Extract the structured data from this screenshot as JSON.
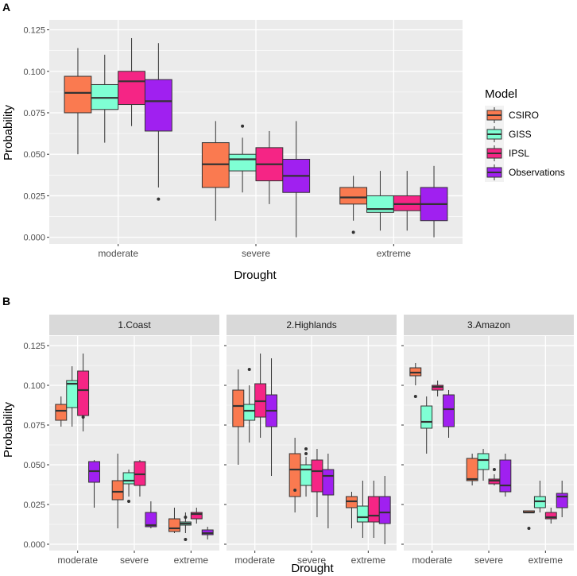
{
  "chart_data": [
    {
      "type": "boxplot",
      "panel_label": "A",
      "xlabel": "Drought",
      "ylabel": "Probability",
      "ylim": [
        -0.004,
        0.131
      ],
      "yticks": [
        "0.000",
        "0.025",
        "0.050",
        "0.075",
        "0.100",
        "0.125"
      ],
      "ytick_values": [
        0,
        0.025,
        0.05,
        0.075,
        0.1,
        0.125
      ],
      "categories": [
        "moderate",
        "severe",
        "extreme"
      ],
      "legend": {
        "title": "Model",
        "position": "right",
        "entries": [
          "CSIRO",
          "GISS",
          "IPSL",
          "Observations"
        ]
      },
      "series": [
        {
          "name": "CSIRO",
          "color": "#FA7A50",
          "boxes": [
            {
              "min": 0.05,
              "q1": 0.075,
              "median": 0.087,
              "q3": 0.097,
              "max": 0.114,
              "outliers": []
            },
            {
              "min": 0.01,
              "q1": 0.03,
              "median": 0.044,
              "q3": 0.057,
              "max": 0.07,
              "outliers": []
            },
            {
              "min": 0.01,
              "q1": 0.02,
              "median": 0.024,
              "q3": 0.03,
              "max": 0.037,
              "outliers": [
                0.003
              ]
            }
          ]
        },
        {
          "name": "GISS",
          "color": "#7FFFD4",
          "boxes": [
            {
              "min": 0.057,
              "q1": 0.077,
              "median": 0.084,
              "q3": 0.092,
              "max": 0.11,
              "outliers": []
            },
            {
              "min": 0.027,
              "q1": 0.04,
              "median": 0.047,
              "q3": 0.05,
              "max": 0.06,
              "outliers": [
                0.067
              ]
            },
            {
              "min": 0.004,
              "q1": 0.015,
              "median": 0.017,
              "q3": 0.025,
              "max": 0.04,
              "outliers": []
            }
          ]
        },
        {
          "name": "IPSL",
          "color": "#F52585",
          "boxes": [
            {
              "min": 0.067,
              "q1": 0.08,
              "median": 0.094,
              "q3": 0.1,
              "max": 0.12,
              "outliers": []
            },
            {
              "min": 0.02,
              "q1": 0.034,
              "median": 0.044,
              "q3": 0.054,
              "max": 0.064,
              "outliers": []
            },
            {
              "min": 0.004,
              "q1": 0.016,
              "median": 0.02,
              "q3": 0.025,
              "max": 0.04,
              "outliers": []
            }
          ]
        },
        {
          "name": "Observations",
          "color": "#A020F0",
          "boxes": [
            {
              "min": 0.03,
              "q1": 0.064,
              "median": 0.082,
              "q3": 0.095,
              "max": 0.117,
              "outliers": [
                0.023
              ]
            },
            {
              "min": 0.0,
              "q1": 0.027,
              "median": 0.037,
              "q3": 0.047,
              "max": 0.07,
              "outliers": []
            },
            {
              "min": 0.0,
              "q1": 0.01,
              "median": 0.02,
              "q3": 0.03,
              "max": 0.043,
              "outliers": []
            }
          ]
        }
      ]
    },
    {
      "type": "boxplot",
      "panel_label": "B",
      "xlabel": "Drought",
      "ylabel": "Probability",
      "ylim": [
        -0.004,
        0.131
      ],
      "yticks": [
        "0.000",
        "0.025",
        "0.050",
        "0.075",
        "0.100",
        "0.125"
      ],
      "ytick_values": [
        0,
        0.025,
        0.05,
        0.075,
        0.1,
        0.125
      ],
      "categories": [
        "moderate",
        "severe",
        "extreme"
      ],
      "series_names": [
        "CSIRO",
        "GISS",
        "IPSL",
        "Observations"
      ],
      "colors": [
        "#FA7A50",
        "#7FFFD4",
        "#F52585",
        "#A020F0"
      ],
      "facets": [
        {
          "name": "1.Coast",
          "boxes": [
            [
              {
                "min": 0.074,
                "q1": 0.078,
                "median": 0.084,
                "q3": 0.088,
                "max": 0.093,
                "outliers": []
              },
              {
                "min": 0.074,
                "q1": 0.086,
                "median": 0.101,
                "q3": 0.103,
                "max": 0.112,
                "outliers": []
              },
              {
                "min": 0.071,
                "q1": 0.081,
                "median": 0.097,
                "q3": 0.109,
                "max": 0.12,
                "outliers": [
                  0.08
                ]
              },
              {
                "min": 0.023,
                "q1": 0.039,
                "median": 0.046,
                "q3": 0.052,
                "max": 0.053,
                "outliers": []
              }
            ],
            [
              {
                "min": 0.01,
                "q1": 0.028,
                "median": 0.033,
                "q3": 0.04,
                "max": 0.057,
                "outliers": []
              },
              {
                "min": 0.03,
                "q1": 0.038,
                "median": 0.04,
                "q3": 0.045,
                "max": 0.047,
                "outliers": [
                  0.027
                ]
              },
              {
                "min": 0.03,
                "q1": 0.037,
                "median": 0.044,
                "q3": 0.052,
                "max": 0.053,
                "outliers": []
              },
              {
                "min": 0.01,
                "q1": 0.011,
                "median": 0.012,
                "q3": 0.02,
                "max": 0.027,
                "outliers": []
              }
            ],
            [
              {
                "min": 0.007,
                "q1": 0.008,
                "median": 0.01,
                "q3": 0.016,
                "max": 0.023,
                "outliers": []
              },
              {
                "min": 0.007,
                "q1": 0.012,
                "median": 0.013,
                "q3": 0.014,
                "max": 0.02,
                "outliers": [
                  0.017,
                  0.003
                ]
              },
              {
                "min": 0.013,
                "q1": 0.016,
                "median": 0.019,
                "q3": 0.02,
                "max": 0.023,
                "outliers": []
              },
              {
                "min": 0.003,
                "q1": 0.006,
                "median": 0.007,
                "q3": 0.009,
                "max": 0.011,
                "outliers": []
              }
            ]
          ]
        },
        {
          "name": "2.Highlands",
          "boxes": [
            [
              {
                "min": 0.05,
                "q1": 0.074,
                "median": 0.087,
                "q3": 0.097,
                "max": 0.11,
                "outliers": []
              },
              {
                "min": 0.064,
                "q1": 0.078,
                "median": 0.084,
                "q3": 0.088,
                "max": 0.1,
                "outliers": [
                  0.11
                ]
              },
              {
                "min": 0.067,
                "q1": 0.08,
                "median": 0.09,
                "q3": 0.101,
                "max": 0.12,
                "outliers": []
              },
              {
                "min": 0.043,
                "q1": 0.074,
                "median": 0.084,
                "q3": 0.094,
                "max": 0.117,
                "outliers": []
              }
            ],
            [
              {
                "min": 0.02,
                "q1": 0.03,
                "median": 0.047,
                "q3": 0.057,
                "max": 0.067,
                "outliers": [
                  0.034
                ]
              },
              {
                "min": 0.03,
                "q1": 0.037,
                "median": 0.047,
                "q3": 0.05,
                "max": 0.055,
                "outliers": [
                  0.06,
                  0.057
                ]
              },
              {
                "min": 0.017,
                "q1": 0.033,
                "median": 0.046,
                "q3": 0.053,
                "max": 0.06,
                "outliers": []
              },
              {
                "min": 0.01,
                "q1": 0.031,
                "median": 0.043,
                "q3": 0.047,
                "max": 0.057,
                "outliers": []
              }
            ],
            [
              {
                "min": 0.01,
                "q1": 0.023,
                "median": 0.027,
                "q3": 0.03,
                "max": 0.033,
                "outliers": []
              },
              {
                "min": 0.004,
                "q1": 0.014,
                "median": 0.017,
                "q3": 0.024,
                "max": 0.04,
                "outliers": []
              },
              {
                "min": 0.004,
                "q1": 0.014,
                "median": 0.018,
                "q3": 0.03,
                "max": 0.04,
                "outliers": []
              },
              {
                "min": 0.0,
                "q1": 0.013,
                "median": 0.02,
                "q3": 0.03,
                "max": 0.043,
                "outliers": []
              }
            ]
          ]
        },
        {
          "name": "3.Amazon",
          "boxes": [
            [
              {
                "min": 0.1,
                "q1": 0.106,
                "median": 0.108,
                "q3": 0.111,
                "max": 0.114,
                "outliers": [
                  0.093
                ]
              },
              {
                "min": 0.057,
                "q1": 0.073,
                "median": 0.077,
                "q3": 0.087,
                "max": 0.093,
                "outliers": []
              },
              {
                "min": 0.093,
                "q1": 0.097,
                "median": 0.099,
                "q3": 0.1,
                "max": 0.103,
                "outliers": []
              },
              {
                "min": 0.067,
                "q1": 0.074,
                "median": 0.085,
                "q3": 0.094,
                "max": 0.097,
                "outliers": []
              }
            ],
            [
              {
                "min": 0.037,
                "q1": 0.04,
                "median": 0.041,
                "q3": 0.054,
                "max": 0.057,
                "outliers": []
              },
              {
                "min": 0.04,
                "q1": 0.047,
                "median": 0.053,
                "q3": 0.057,
                "max": 0.06,
                "outliers": []
              },
              {
                "min": 0.037,
                "q1": 0.038,
                "median": 0.04,
                "q3": 0.041,
                "max": 0.044,
                "outliers": [
                  0.047
                ]
              },
              {
                "min": 0.03,
                "q1": 0.033,
                "median": 0.037,
                "q3": 0.053,
                "max": 0.057,
                "outliers": []
              }
            ],
            [
              {
                "min": 0.02,
                "q1": 0.02,
                "median": 0.02,
                "q3": 0.021,
                "max": 0.021,
                "outliers": [
                  0.01
                ]
              },
              {
                "min": 0.02,
                "q1": 0.023,
                "median": 0.027,
                "q3": 0.03,
                "max": 0.04,
                "outliers": []
              },
              {
                "min": 0.013,
                "q1": 0.016,
                "median": 0.017,
                "q3": 0.02,
                "max": 0.023,
                "outliers": []
              },
              {
                "min": 0.017,
                "q1": 0.023,
                "median": 0.03,
                "q3": 0.032,
                "max": 0.04,
                "outliers": []
              }
            ]
          ]
        }
      ]
    }
  ]
}
